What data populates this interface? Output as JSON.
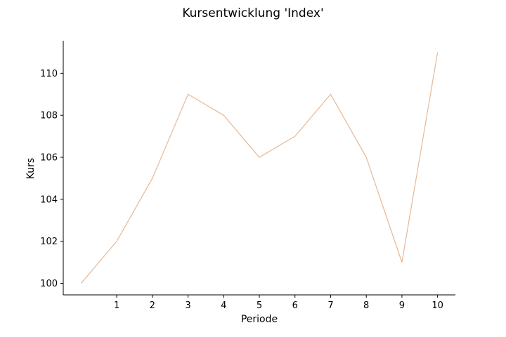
{
  "chart_data": {
    "type": "line",
    "title": "Kursentwicklung 'Index'",
    "xlabel": "Periode",
    "ylabel": "Kurs",
    "x": [
      0,
      1,
      2,
      3,
      4,
      5,
      6,
      7,
      8,
      9,
      10
    ],
    "x_tick_labels": [
      "1",
      "2",
      "3",
      "4",
      "5",
      "6",
      "7",
      "8",
      "9",
      "10"
    ],
    "y_tick_labels": [
      "100",
      "102",
      "104",
      "106",
      "108",
      "110"
    ],
    "y_ticks": [
      100,
      102,
      104,
      106,
      108,
      110
    ],
    "x_ticks": [
      1,
      2,
      3,
      4,
      5,
      6,
      7,
      8,
      9,
      10
    ],
    "xlim": [
      -0.5,
      10.5
    ],
    "ylim": [
      99.45,
      111.55
    ],
    "series": [
      {
        "values": [
          100,
          102,
          105,
          109,
          108,
          106,
          107,
          109,
          106,
          101,
          111
        ],
        "color": "#e6b897"
      }
    ],
    "grid": false,
    "legend": "none"
  }
}
